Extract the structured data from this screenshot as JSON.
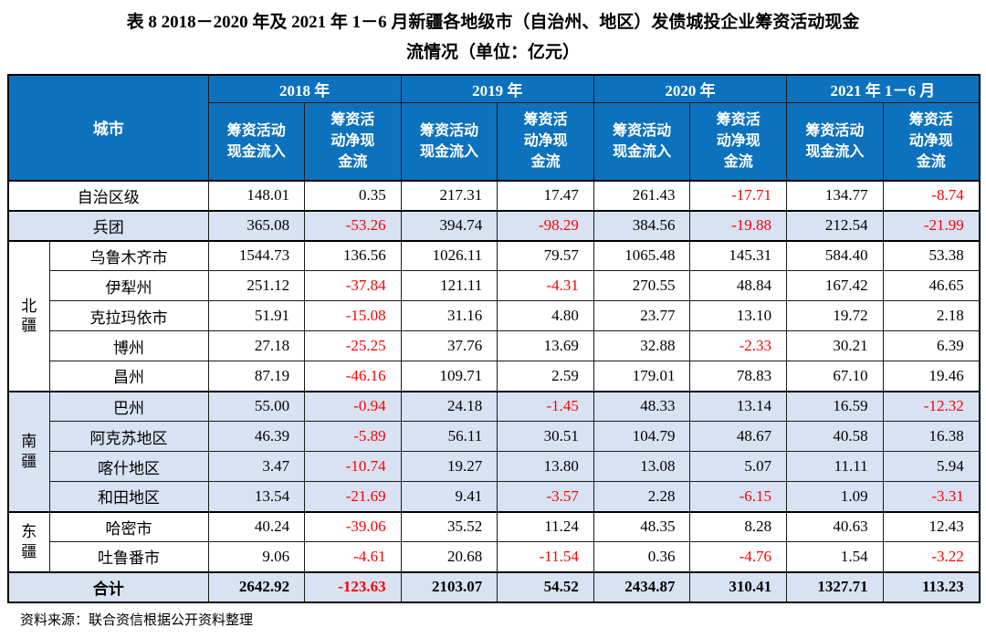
{
  "title": "表 8  2018－2020 年及 2021 年 1－6 月新疆各地级市（自治州、地区）发债城投企业筹资活动现金\n流情况（单位：亿元）",
  "source_note": "资料来源：联合资信根据公开资料整理",
  "colors": {
    "header_bg": "#0D72BE",
    "shaded_row_bg": "#D9E2F3",
    "negative_value": "#FF0000",
    "border": "#000000"
  },
  "table": {
    "city_header": "城市",
    "year_groups": [
      "2018 年",
      "2019 年",
      "2020 年",
      "2021 年 1－6 月"
    ],
    "inflow_label": "筹资活动\n现金流入",
    "net_label": "筹资活\n动净现\n金流",
    "sections": [
      {
        "group": "",
        "shaded": false,
        "rows": [
          {
            "city": "自治区级",
            "values": [
              "148.01",
              "0.35",
              "217.31",
              "17.47",
              "261.43",
              "-17.71",
              "134.77",
              "-8.74"
            ]
          }
        ]
      },
      {
        "group": "",
        "shaded": true,
        "rows": [
          {
            "city": "兵团",
            "values": [
              "365.08",
              "-53.26",
              "394.74",
              "-98.29",
              "384.56",
              "-19.88",
              "212.54",
              "-21.99"
            ]
          }
        ]
      },
      {
        "group": "北\n疆",
        "shaded": false,
        "rows": [
          {
            "city": "乌鲁木齐市",
            "values": [
              "1544.73",
              "136.56",
              "1026.11",
              "79.57",
              "1065.48",
              "145.31",
              "584.40",
              "53.38"
            ]
          },
          {
            "city": "伊犁州",
            "values": [
              "251.12",
              "-37.84",
              "121.11",
              "-4.31",
              "270.55",
              "48.84",
              "167.42",
              "46.65"
            ]
          },
          {
            "city": "克拉玛依市",
            "values": [
              "51.91",
              "-15.08",
              "31.16",
              "4.80",
              "23.77",
              "13.10",
              "19.72",
              "2.18"
            ]
          },
          {
            "city": "博州",
            "values": [
              "27.18",
              "-25.25",
              "37.76",
              "13.69",
              "32.88",
              "-2.33",
              "30.21",
              "6.39"
            ]
          },
          {
            "city": "昌州",
            "values": [
              "87.19",
              "-46.16",
              "109.71",
              "2.59",
              "179.01",
              "78.83",
              "67.10",
              "19.46"
            ]
          }
        ]
      },
      {
        "group": "南\n疆",
        "shaded": true,
        "rows": [
          {
            "city": "巴州",
            "values": [
              "55.00",
              "-0.94",
              "24.18",
              "-1.45",
              "48.33",
              "13.14",
              "16.59",
              "-12.32"
            ]
          },
          {
            "city": "阿克苏地区",
            "values": [
              "46.39",
              "-5.89",
              "56.11",
              "30.51",
              "104.79",
              "48.67",
              "40.58",
              "16.38"
            ]
          },
          {
            "city": "喀什地区",
            "values": [
              "3.47",
              "-10.74",
              "19.27",
              "13.80",
              "13.08",
              "5.07",
              "11.11",
              "5.94"
            ]
          },
          {
            "city": "和田地区",
            "values": [
              "13.54",
              "-21.69",
              "9.41",
              "-3.57",
              "2.28",
              "-6.15",
              "1.09",
              "-3.31"
            ]
          }
        ]
      },
      {
        "group": "东\n疆",
        "shaded": false,
        "rows": [
          {
            "city": "哈密市",
            "values": [
              "40.24",
              "-39.06",
              "35.52",
              "11.24",
              "48.35",
              "8.28",
              "40.63",
              "12.43"
            ]
          },
          {
            "city": "吐鲁番市",
            "values": [
              "9.06",
              "-4.61",
              "20.68",
              "-11.54",
              "0.36",
              "-4.76",
              "1.54",
              "-3.22"
            ]
          }
        ]
      },
      {
        "group": "",
        "shaded": true,
        "total": true,
        "rows": [
          {
            "city": "合计",
            "values": [
              "2642.92",
              "-123.63",
              "2103.07",
              "54.52",
              "2434.87",
              "310.41",
              "1327.71",
              "113.23"
            ]
          }
        ]
      }
    ]
  }
}
